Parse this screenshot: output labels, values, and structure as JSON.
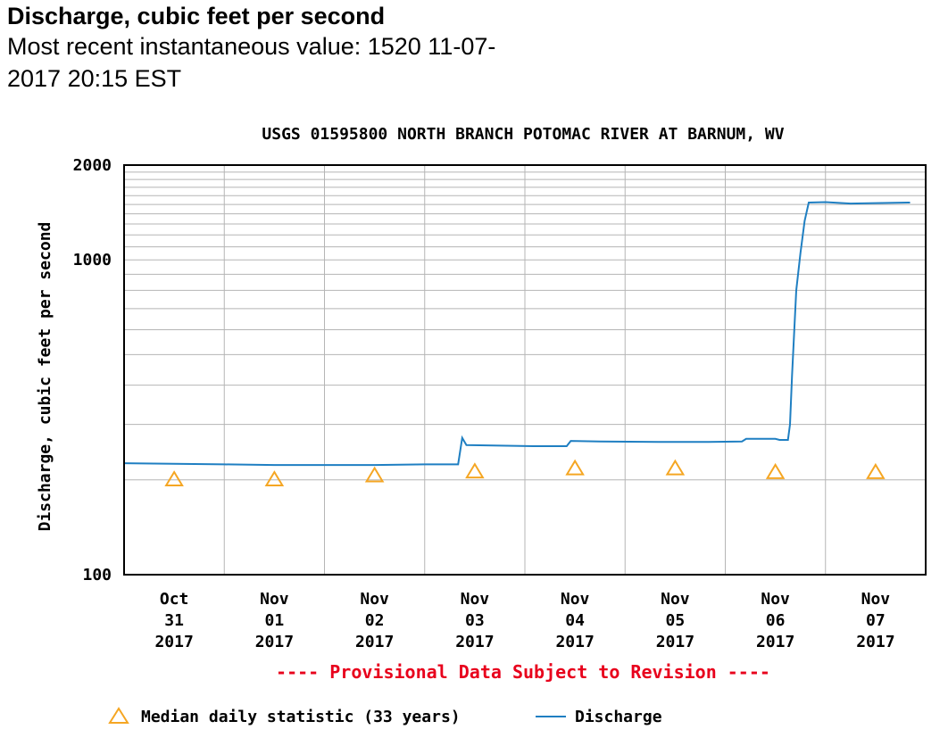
{
  "header": {
    "title": "Discharge, cubic feet per second",
    "subtitle": "Most recent instantaneous value: 1520 11-07-2017   20:15 EST"
  },
  "chart_data": {
    "type": "line",
    "title": "USGS 01595800 NORTH BRANCH POTOMAC RIVER AT BARNUM, WV",
    "xlabel": "",
    "ylabel": "Discharge, cubic feet per second",
    "yscale": "log",
    "ylim": [
      100,
      2000
    ],
    "yticks": [
      {
        "value": 100,
        "label": "100"
      },
      {
        "value": 1000,
        "label": "1000"
      },
      {
        "value": 2000,
        "label": "2000"
      }
    ],
    "xlim": [
      "2017-10-31 00:00",
      "2017-11-08 00:00"
    ],
    "xticks": [
      {
        "date": "2017-10-31",
        "lines": [
          "Oct",
          "31",
          "2017"
        ]
      },
      {
        "date": "2017-11-01",
        "lines": [
          "Nov",
          "01",
          "2017"
        ]
      },
      {
        "date": "2017-11-02",
        "lines": [
          "Nov",
          "02",
          "2017"
        ]
      },
      {
        "date": "2017-11-03",
        "lines": [
          "Nov",
          "03",
          "2017"
        ]
      },
      {
        "date": "2017-11-04",
        "lines": [
          "Nov",
          "04",
          "2017"
        ]
      },
      {
        "date": "2017-11-05",
        "lines": [
          "Nov",
          "05",
          "2017"
        ]
      },
      {
        "date": "2017-11-06",
        "lines": [
          "Nov",
          "06",
          "2017"
        ]
      },
      {
        "date": "2017-11-07",
        "lines": [
          "Nov",
          "07",
          "2017"
        ]
      }
    ],
    "grid": true,
    "legend_position": "bottom",
    "notice": "---- Provisional Data Subject to Revision ----",
    "series": [
      {
        "name": "Discharge",
        "color": "#1f7fc2",
        "kind": "line",
        "points": [
          [
            "2017-10-31 00:00",
            226
          ],
          [
            "2017-10-31 12:00",
            225
          ],
          [
            "2017-11-01 00:00",
            224
          ],
          [
            "2017-11-01 12:00",
            223
          ],
          [
            "2017-11-02 00:00",
            223
          ],
          [
            "2017-11-02 12:00",
            223
          ],
          [
            "2017-11-03 00:00",
            224
          ],
          [
            "2017-11-03 08:00",
            224
          ],
          [
            "2017-11-03 09:00",
            272
          ],
          [
            "2017-11-03 10:00",
            258
          ],
          [
            "2017-11-03 18:00",
            257
          ],
          [
            "2017-11-04 02:00",
            256
          ],
          [
            "2017-11-04 10:00",
            256
          ],
          [
            "2017-11-04 11:00",
            266
          ],
          [
            "2017-11-04 18:00",
            265
          ],
          [
            "2017-11-05 08:00",
            264
          ],
          [
            "2017-11-05 20:00",
            264
          ],
          [
            "2017-11-06 04:00",
            265
          ],
          [
            "2017-11-06 05:00",
            270
          ],
          [
            "2017-11-06 12:00",
            270
          ],
          [
            "2017-11-06 13:00",
            268
          ],
          [
            "2017-11-06 15:00",
            268
          ],
          [
            "2017-11-06 15:30",
            300
          ],
          [
            "2017-11-06 16:00",
            430
          ],
          [
            "2017-11-06 17:00",
            800
          ],
          [
            "2017-11-06 18:00",
            1050
          ],
          [
            "2017-11-06 19:00",
            1330
          ],
          [
            "2017-11-06 20:00",
            1520
          ],
          [
            "2017-11-07 00:00",
            1525
          ],
          [
            "2017-11-07 06:00",
            1510
          ],
          [
            "2017-11-07 12:00",
            1515
          ],
          [
            "2017-11-07 20:15",
            1520
          ]
        ]
      },
      {
        "name": "Median daily statistic (33 years)",
        "color": "#f5a623",
        "kind": "triangle",
        "points": [
          [
            "2017-10-31 12:00",
            201
          ],
          [
            "2017-11-01 12:00",
            201
          ],
          [
            "2017-11-02 12:00",
            207
          ],
          [
            "2017-11-03 12:00",
            213
          ],
          [
            "2017-11-04 12:00",
            218
          ],
          [
            "2017-11-05 12:00",
            218
          ],
          [
            "2017-11-06 12:00",
            212
          ],
          [
            "2017-11-07 12:00",
            212
          ]
        ]
      }
    ],
    "notice_color": "#e8001c"
  }
}
